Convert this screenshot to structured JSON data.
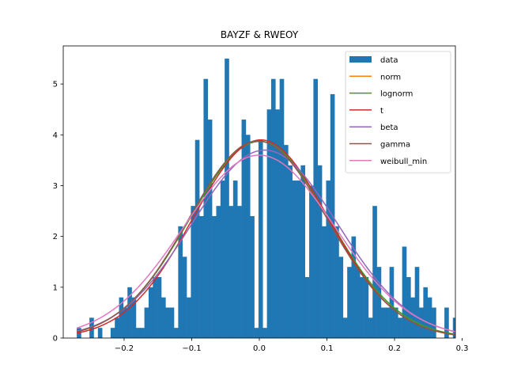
{
  "chart_data": {
    "type": "bar",
    "title": "BAYZF & RWEOY",
    "xlabel": "",
    "ylabel": "",
    "xlim": [
      -0.29,
      0.29
    ],
    "ylim": [
      0,
      5.75
    ],
    "xticks": [
      -0.2,
      -0.1,
      0.0,
      0.1,
      0.2,
      0.3
    ],
    "xtick_labels": [
      "−0.2",
      "−0.1",
      "0.0",
      "0.1",
      "0.2",
      "0.3"
    ],
    "yticks": [
      0,
      1,
      2,
      3,
      4,
      5
    ],
    "ytick_labels": [
      "0",
      "1",
      "2",
      "3",
      "4",
      "5"
    ],
    "grid": false,
    "legend": {
      "placement": "top-right",
      "entries": [
        {
          "name": "data",
          "color": "#1f77b4",
          "kind": "patch"
        },
        {
          "name": "norm",
          "color": "#ff7f0e",
          "kind": "line"
        },
        {
          "name": "lognorm",
          "color": "#2ca02c",
          "kind": "line"
        },
        {
          "name": "t",
          "color": "#d62728",
          "kind": "line"
        },
        {
          "name": "beta",
          "color": "#9467bd",
          "kind": "line"
        },
        {
          "name": "gamma",
          "color": "#8c564b",
          "kind": "line"
        },
        {
          "name": "weibull_min",
          "color": "#e377c2",
          "kind": "line"
        }
      ]
    },
    "histogram": {
      "name": "data",
      "color": "#1f77b4",
      "bin_start": -0.27,
      "bin_width": 0.00625,
      "heights": [
        0.2,
        0.0,
        0.0,
        0.4,
        0.0,
        0.2,
        0.0,
        0.0,
        0.2,
        0.4,
        0.8,
        0.6,
        1.0,
        0.8,
        0.2,
        0.2,
        0.6,
        1.0,
        1.2,
        1.2,
        0.8,
        0.6,
        0.6,
        0.2,
        2.2,
        1.6,
        0.8,
        2.6,
        3.9,
        2.4,
        5.1,
        4.3,
        2.4,
        2.6,
        3.1,
        5.5,
        2.6,
        3.1,
        2.6,
        4.3,
        4.0,
        2.4,
        0.2,
        3.9,
        0.2,
        4.5,
        5.1,
        4.5,
        5.1,
        3.8,
        3.4,
        3.1,
        3.1,
        3.4,
        1.2,
        3.0,
        5.1,
        3.4,
        2.2,
        3.1,
        4.8,
        2.2,
        1.6,
        0.4,
        1.4,
        2.0,
        1.4,
        1.2,
        1.2,
        0.4,
        2.6,
        1.4,
        0.6,
        0.6,
        1.4,
        0.6,
        0.4,
        1.8,
        1.2,
        0.8,
        1.4,
        0.6,
        1.0,
        0.8,
        0.6,
        0.0,
        0.0,
        0.6,
        0.0,
        0.4,
        0.4
      ]
    },
    "series": [
      {
        "name": "norm",
        "color": "#ff7f0e",
        "distribution": "normal",
        "mu": 0.0,
        "sigma": 0.103,
        "peak": 3.87
      },
      {
        "name": "lognorm",
        "color": "#2ca02c",
        "distribution": "normal",
        "mu": 0.0,
        "sigma": 0.103,
        "peak": 3.87
      },
      {
        "name": "t",
        "color": "#d62728",
        "distribution": "normal",
        "mu": 0.002,
        "sigma": 0.1,
        "peak": 3.9
      },
      {
        "name": "beta",
        "color": "#9467bd",
        "distribution": "normal",
        "mu": 0.008,
        "sigma": 0.108,
        "peak": 3.7
      },
      {
        "name": "gamma",
        "color": "#8c564b",
        "distribution": "normal",
        "mu": -0.002,
        "sigma": 0.102,
        "peak": 3.88
      },
      {
        "name": "weibull_min",
        "color": "#e377c2",
        "distribution": "normal",
        "mu": 0.0,
        "sigma": 0.112,
        "peak": 3.6
      }
    ]
  }
}
